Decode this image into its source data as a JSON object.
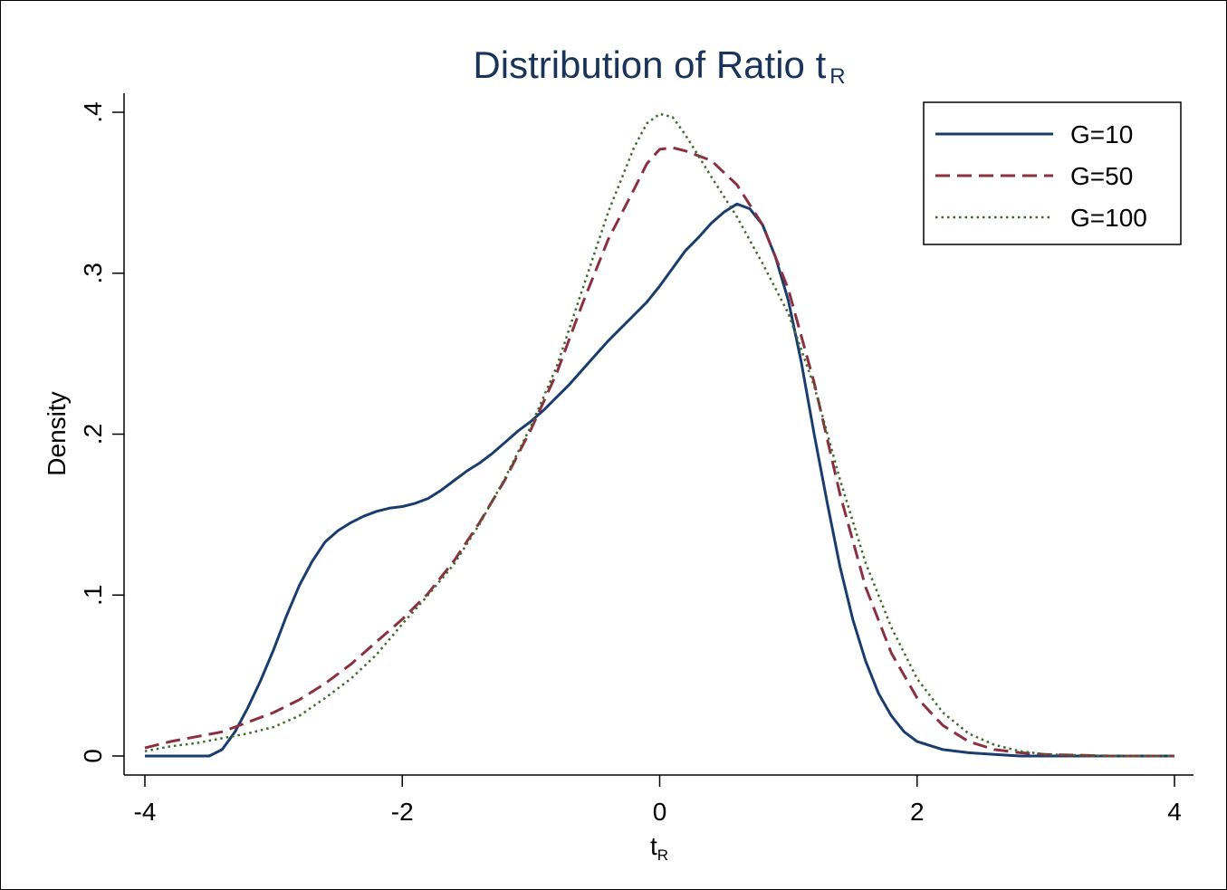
{
  "chart_data": {
    "type": "line",
    "title": "Distribution of Ratio t",
    "title_subscript": "R",
    "xlabel": "t",
    "xlabel_subscript": "R",
    "ylabel": "Density",
    "xlim": [
      -4,
      4
    ],
    "ylim": [
      0,
      0.4
    ],
    "xticks": [
      -4,
      -2,
      0,
      2,
      4
    ],
    "xtick_labels": [
      "-4",
      "-2",
      "0",
      "2",
      "4"
    ],
    "yticks": [
      0,
      0.1,
      0.2,
      0.3,
      0.4
    ],
    "ytick_labels": [
      "0",
      ".1",
      ".2",
      ".3",
      ".4"
    ],
    "grid": false,
    "legend_position": "top-right",
    "series": [
      {
        "name": "G=10",
        "color": "#1a3d6d",
        "style": "solid",
        "x": [
          -4.0,
          -3.5,
          -3.4,
          -3.3,
          -3.2,
          -3.1,
          -3.0,
          -2.9,
          -2.8,
          -2.7,
          -2.6,
          -2.5,
          -2.4,
          -2.3,
          -2.2,
          -2.1,
          -2.0,
          -1.9,
          -1.8,
          -1.7,
          -1.6,
          -1.5,
          -1.4,
          -1.3,
          -1.2,
          -1.1,
          -1.0,
          -0.9,
          -0.8,
          -0.7,
          -0.6,
          -0.5,
          -0.4,
          -0.3,
          -0.2,
          -0.1,
          0.0,
          0.1,
          0.2,
          0.3,
          0.4,
          0.5,
          0.6,
          0.7,
          0.8,
          0.9,
          1.0,
          1.1,
          1.2,
          1.3,
          1.4,
          1.5,
          1.6,
          1.7,
          1.8,
          1.9,
          2.0,
          2.2,
          2.4,
          2.6,
          2.8,
          3.0,
          4.0
        ],
        "y": [
          0.0,
          0.0,
          0.004,
          0.015,
          0.03,
          0.047,
          0.066,
          0.087,
          0.106,
          0.121,
          0.133,
          0.14,
          0.145,
          0.149,
          0.152,
          0.154,
          0.155,
          0.157,
          0.16,
          0.165,
          0.171,
          0.177,
          0.182,
          0.188,
          0.195,
          0.202,
          0.208,
          0.215,
          0.223,
          0.231,
          0.24,
          0.249,
          0.258,
          0.266,
          0.274,
          0.282,
          0.292,
          0.303,
          0.314,
          0.322,
          0.331,
          0.338,
          0.343,
          0.34,
          0.33,
          0.31,
          0.283,
          0.245,
          0.2,
          0.158,
          0.118,
          0.085,
          0.059,
          0.039,
          0.025,
          0.015,
          0.009,
          0.004,
          0.002,
          0.001,
          0.0,
          0.0,
          0.0
        ]
      },
      {
        "name": "G=50",
        "color": "#8b3040",
        "style": "dashed",
        "x": [
          -4.0,
          -3.8,
          -3.6,
          -3.4,
          -3.2,
          -3.0,
          -2.8,
          -2.6,
          -2.4,
          -2.2,
          -2.0,
          -1.8,
          -1.6,
          -1.4,
          -1.2,
          -1.0,
          -0.8,
          -0.6,
          -0.4,
          -0.2,
          -0.1,
          0.0,
          0.1,
          0.2,
          0.4,
          0.6,
          0.8,
          1.0,
          1.2,
          1.4,
          1.6,
          1.8,
          2.0,
          2.2,
          2.4,
          2.6,
          2.8,
          3.0,
          3.5,
          4.0
        ],
        "y": [
          0.005,
          0.009,
          0.012,
          0.015,
          0.021,
          0.027,
          0.035,
          0.045,
          0.057,
          0.071,
          0.085,
          0.101,
          0.121,
          0.145,
          0.172,
          0.203,
          0.238,
          0.281,
          0.321,
          0.352,
          0.368,
          0.377,
          0.378,
          0.376,
          0.37,
          0.355,
          0.33,
          0.29,
          0.232,
          0.163,
          0.105,
          0.064,
          0.036,
          0.019,
          0.009,
          0.004,
          0.002,
          0.001,
          0.0,
          0.0
        ]
      },
      {
        "name": "G=100",
        "color": "#3c6b2a",
        "style": "dotted",
        "x": [
          -4.0,
          -3.8,
          -3.6,
          -3.4,
          -3.2,
          -3.0,
          -2.8,
          -2.6,
          -2.4,
          -2.2,
          -2.0,
          -1.8,
          -1.6,
          -1.4,
          -1.2,
          -1.0,
          -0.8,
          -0.6,
          -0.4,
          -0.2,
          -0.1,
          0.0,
          0.1,
          0.2,
          0.4,
          0.6,
          0.8,
          1.0,
          1.2,
          1.4,
          1.6,
          1.8,
          2.0,
          2.2,
          2.4,
          2.6,
          2.8,
          3.0,
          3.5,
          4.0
        ],
        "y": [
          0.003,
          0.006,
          0.008,
          0.011,
          0.014,
          0.018,
          0.025,
          0.036,
          0.048,
          0.063,
          0.082,
          0.1,
          0.119,
          0.144,
          0.173,
          0.205,
          0.242,
          0.29,
          0.338,
          0.378,
          0.393,
          0.399,
          0.397,
          0.386,
          0.36,
          0.335,
          0.306,
          0.275,
          0.23,
          0.172,
          0.12,
          0.08,
          0.048,
          0.027,
          0.014,
          0.007,
          0.003,
          0.001,
          0.0,
          0.0
        ]
      }
    ]
  }
}
